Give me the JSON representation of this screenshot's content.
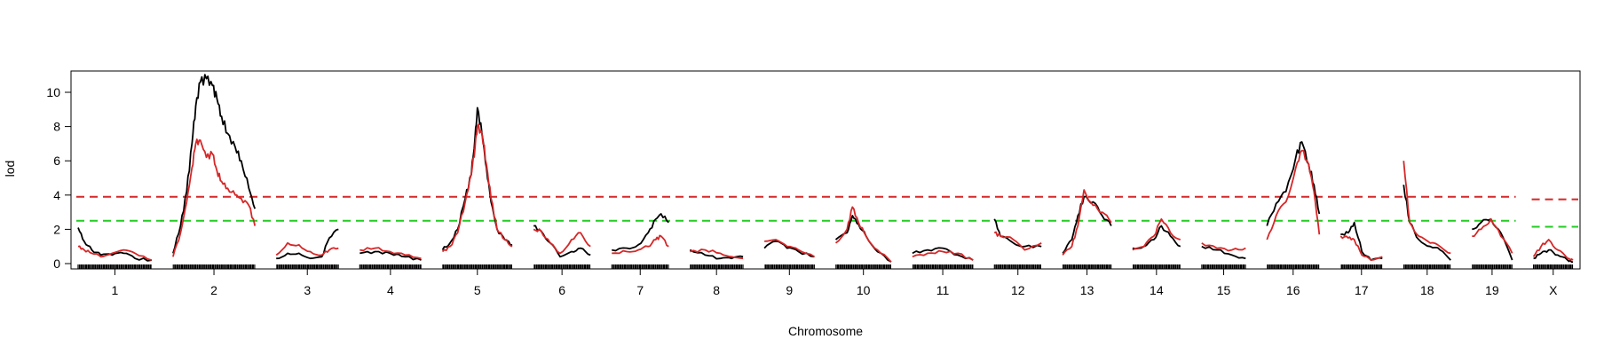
{
  "chart_data": {
    "type": "line",
    "xlabel": "Chromosome",
    "ylabel": "lod",
    "ylim": [
      0,
      11
    ],
    "yticks": [
      0,
      2,
      4,
      6,
      8,
      10
    ],
    "categories": [
      "1",
      "2",
      "3",
      "4",
      "5",
      "6",
      "7",
      "8",
      "9",
      "10",
      "11",
      "12",
      "13",
      "14",
      "15",
      "16",
      "17",
      "18",
      "19",
      "X"
    ],
    "chromosome_lengths_cM": [
      97,
      108,
      82,
      81,
      92,
      75,
      75,
      70,
      66,
      73,
      80,
      62,
      64,
      63,
      58,
      69,
      55,
      62,
      53,
      52
    ],
    "thresholds": [
      {
        "color": "#d62728",
        "autosome": 3.9,
        "x": 3.75
      },
      {
        "color": "#22cc22",
        "autosome": 2.5,
        "x": 2.15
      }
    ],
    "series": [
      {
        "color": "#000000",
        "points": [
          [
            [
              0,
              2.1
            ],
            [
              8,
              1.3
            ],
            [
              18,
              0.8
            ],
            [
              30,
              0.5
            ],
            [
              45,
              0.5
            ],
            [
              60,
              0.6
            ],
            [
              75,
              0.3
            ],
            [
              97,
              0.2
            ]
          ],
          [
            [
              0,
              0.6
            ],
            [
              10,
              2.2
            ],
            [
              18,
              4.2
            ],
            [
              25,
              7.0
            ],
            [
              30,
              9.2
            ],
            [
              36,
              10.6
            ],
            [
              44,
              10.8
            ],
            [
              52,
              10.4
            ],
            [
              58,
              9.6
            ],
            [
              64,
              8.6
            ],
            [
              72,
              7.6
            ],
            [
              82,
              6.8
            ],
            [
              90,
              6.0
            ],
            [
              100,
              4.4
            ],
            [
              108,
              3.2
            ]
          ],
          [
            [
              0,
              0.3
            ],
            [
              15,
              0.6
            ],
            [
              30,
              0.6
            ],
            [
              45,
              0.3
            ],
            [
              60,
              0.4
            ],
            [
              70,
              1.5
            ],
            [
              82,
              2.0
            ]
          ],
          [
            [
              0,
              0.6
            ],
            [
              20,
              0.7
            ],
            [
              40,
              0.6
            ],
            [
              60,
              0.4
            ],
            [
              81,
              0.2
            ]
          ],
          [
            [
              0,
              0.8
            ],
            [
              10,
              1.2
            ],
            [
              20,
              2.0
            ],
            [
              30,
              3.8
            ],
            [
              38,
              5.2
            ],
            [
              43,
              7.4
            ],
            [
              46,
              9.1
            ],
            [
              52,
              7.6
            ],
            [
              58,
              5.6
            ],
            [
              64,
              3.6
            ],
            [
              72,
              2.0
            ],
            [
              82,
              1.4
            ],
            [
              92,
              1.1
            ]
          ],
          [
            [
              0,
              2.2
            ],
            [
              10,
              1.9
            ],
            [
              22,
              1.2
            ],
            [
              35,
              0.4
            ],
            [
              50,
              0.7
            ],
            [
              62,
              0.9
            ],
            [
              75,
              0.5
            ]
          ],
          [
            [
              0,
              0.8
            ],
            [
              20,
              0.9
            ],
            [
              35,
              1.1
            ],
            [
              48,
              1.8
            ],
            [
              58,
              2.6
            ],
            [
              65,
              2.9
            ],
            [
              75,
              2.4
            ]
          ],
          [
            [
              0,
              0.8
            ],
            [
              20,
              0.5
            ],
            [
              40,
              0.3
            ],
            [
              55,
              0.3
            ],
            [
              70,
              0.4
            ]
          ],
          [
            [
              0,
              0.9
            ],
            [
              15,
              1.3
            ],
            [
              30,
              0.9
            ],
            [
              45,
              0.7
            ],
            [
              66,
              0.4
            ]
          ],
          [
            [
              0,
              1.4
            ],
            [
              15,
              1.8
            ],
            [
              22,
              2.8
            ],
            [
              30,
              2.3
            ],
            [
              40,
              1.6
            ],
            [
              55,
              0.7
            ],
            [
              73,
              0.1
            ]
          ],
          [
            [
              0,
              0.6
            ],
            [
              20,
              0.8
            ],
            [
              40,
              0.9
            ],
            [
              60,
              0.5
            ],
            [
              80,
              0.2
            ]
          ],
          [
            [
              0,
              2.6
            ],
            [
              8,
              1.6
            ],
            [
              25,
              1.2
            ],
            [
              40,
              1.0
            ],
            [
              62,
              1.0
            ]
          ],
          [
            [
              0,
              0.6
            ],
            [
              12,
              1.4
            ],
            [
              20,
              2.8
            ],
            [
              28,
              3.9
            ],
            [
              40,
              3.6
            ],
            [
              52,
              2.8
            ],
            [
              64,
              2.2
            ]
          ],
          [
            [
              0,
              0.9
            ],
            [
              15,
              1.0
            ],
            [
              28,
              1.4
            ],
            [
              38,
              2.2
            ],
            [
              50,
              1.6
            ],
            [
              63,
              1.0
            ]
          ],
          [
            [
              0,
              1.0
            ],
            [
              20,
              0.8
            ],
            [
              40,
              0.5
            ],
            [
              58,
              0.3
            ]
          ],
          [
            [
              0,
              2.2
            ],
            [
              12,
              3.5
            ],
            [
              25,
              4.2
            ],
            [
              38,
              6.2
            ],
            [
              46,
              7.1
            ],
            [
              55,
              5.8
            ],
            [
              62,
              4.6
            ],
            [
              69,
              2.9
            ]
          ],
          [
            [
              0,
              1.7
            ],
            [
              10,
              1.8
            ],
            [
              18,
              2.4
            ],
            [
              28,
              0.7
            ],
            [
              40,
              0.2
            ],
            [
              55,
              0.3
            ]
          ],
          [
            [
              0,
              4.6
            ],
            [
              8,
              2.4
            ],
            [
              20,
              1.4
            ],
            [
              35,
              1.0
            ],
            [
              48,
              0.8
            ],
            [
              62,
              0.2
            ]
          ],
          [
            [
              0,
              2.0
            ],
            [
              12,
              2.4
            ],
            [
              25,
              2.6
            ],
            [
              38,
              1.8
            ],
            [
              53,
              0.2
            ]
          ],
          [
            [
              0,
              0.3
            ],
            [
              10,
              0.6
            ],
            [
              20,
              0.8
            ],
            [
              32,
              0.5
            ],
            [
              45,
              0.2
            ],
            [
              52,
              0.1
            ]
          ]
        ]
      },
      {
        "color": "#d62728",
        "points": [
          [
            [
              0,
              1.0
            ],
            [
              8,
              0.8
            ],
            [
              18,
              0.6
            ],
            [
              30,
              0.4
            ],
            [
              45,
              0.6
            ],
            [
              60,
              0.8
            ],
            [
              75,
              0.6
            ],
            [
              97,
              0.2
            ]
          ],
          [
            [
              0,
              0.4
            ],
            [
              10,
              1.8
            ],
            [
              18,
              3.6
            ],
            [
              25,
              5.6
            ],
            [
              30,
              7.0
            ],
            [
              36,
              7.2
            ],
            [
              44,
              6.2
            ],
            [
              52,
              6.4
            ],
            [
              58,
              5.4
            ],
            [
              64,
              4.8
            ],
            [
              72,
              4.4
            ],
            [
              82,
              4.0
            ],
            [
              90,
              3.8
            ],
            [
              100,
              3.4
            ],
            [
              108,
              2.2
            ]
          ],
          [
            [
              0,
              0.5
            ],
            [
              15,
              1.2
            ],
            [
              30,
              1.1
            ],
            [
              45,
              0.7
            ],
            [
              60,
              0.5
            ],
            [
              70,
              0.8
            ],
            [
              82,
              0.9
            ]
          ],
          [
            [
              0,
              0.8
            ],
            [
              20,
              0.9
            ],
            [
              40,
              0.7
            ],
            [
              60,
              0.5
            ],
            [
              81,
              0.3
            ]
          ],
          [
            [
              0,
              0.7
            ],
            [
              10,
              1.0
            ],
            [
              20,
              1.8
            ],
            [
              30,
              3.6
            ],
            [
              38,
              5.2
            ],
            [
              43,
              6.8
            ],
            [
              46,
              8.0
            ],
            [
              52,
              7.6
            ],
            [
              58,
              5.8
            ],
            [
              64,
              3.8
            ],
            [
              72,
              2.0
            ],
            [
              82,
              1.4
            ],
            [
              92,
              1.0
            ]
          ],
          [
            [
              0,
              2.0
            ],
            [
              10,
              1.9
            ],
            [
              22,
              1.2
            ],
            [
              35,
              0.6
            ],
            [
              50,
              1.4
            ],
            [
              62,
              1.8
            ],
            [
              75,
              1.0
            ]
          ],
          [
            [
              0,
              0.6
            ],
            [
              20,
              0.7
            ],
            [
              35,
              0.8
            ],
            [
              48,
              1.0
            ],
            [
              58,
              1.4
            ],
            [
              65,
              1.6
            ],
            [
              75,
              1.0
            ]
          ],
          [
            [
              0,
              0.7
            ],
            [
              20,
              0.8
            ],
            [
              40,
              0.6
            ],
            [
              55,
              0.4
            ],
            [
              70,
              0.3
            ]
          ],
          [
            [
              0,
              1.3
            ],
            [
              15,
              1.4
            ],
            [
              30,
              1.0
            ],
            [
              45,
              0.8
            ],
            [
              66,
              0.4
            ]
          ],
          [
            [
              0,
              1.2
            ],
            [
              15,
              2.0
            ],
            [
              22,
              3.3
            ],
            [
              30,
              2.4
            ],
            [
              40,
              1.6
            ],
            [
              55,
              0.8
            ],
            [
              73,
              0.1
            ]
          ],
          [
            [
              0,
              0.4
            ],
            [
              20,
              0.6
            ],
            [
              40,
              0.7
            ],
            [
              60,
              0.6
            ],
            [
              80,
              0.2
            ]
          ],
          [
            [
              0,
              1.8
            ],
            [
              8,
              1.6
            ],
            [
              25,
              1.4
            ],
            [
              40,
              0.8
            ],
            [
              62,
              1.2
            ]
          ],
          [
            [
              0,
              0.5
            ],
            [
              12,
              1.0
            ],
            [
              20,
              2.2
            ],
            [
              28,
              4.3
            ],
            [
              40,
              3.4
            ],
            [
              52,
              3.0
            ],
            [
              64,
              2.4
            ]
          ],
          [
            [
              0,
              0.8
            ],
            [
              15,
              1.0
            ],
            [
              28,
              1.6
            ],
            [
              38,
              2.6
            ],
            [
              50,
              1.8
            ],
            [
              63,
              1.4
            ]
          ],
          [
            [
              0,
              1.2
            ],
            [
              20,
              0.9
            ],
            [
              40,
              0.8
            ],
            [
              58,
              0.9
            ]
          ],
          [
            [
              0,
              1.4
            ],
            [
              12,
              2.8
            ],
            [
              25,
              3.6
            ],
            [
              38,
              5.6
            ],
            [
              46,
              6.6
            ],
            [
              55,
              5.8
            ],
            [
              62,
              4.2
            ],
            [
              69,
              1.7
            ]
          ],
          [
            [
              0,
              1.6
            ],
            [
              10,
              1.5
            ],
            [
              18,
              1.4
            ],
            [
              28,
              0.5
            ],
            [
              40,
              0.2
            ],
            [
              55,
              0.4
            ]
          ],
          [
            [
              0,
              6.0
            ],
            [
              8,
              2.4
            ],
            [
              20,
              1.6
            ],
            [
              35,
              1.2
            ],
            [
              48,
              1.0
            ],
            [
              62,
              0.6
            ]
          ],
          [
            [
              0,
              1.6
            ],
            [
              12,
              2.0
            ],
            [
              25,
              2.6
            ],
            [
              38,
              1.6
            ],
            [
              53,
              0.6
            ]
          ],
          [
            [
              0,
              0.4
            ],
            [
              10,
              1.0
            ],
            [
              20,
              1.4
            ],
            [
              32,
              0.8
            ],
            [
              45,
              0.3
            ],
            [
              52,
              0.2
            ]
          ]
        ]
      }
    ]
  }
}
